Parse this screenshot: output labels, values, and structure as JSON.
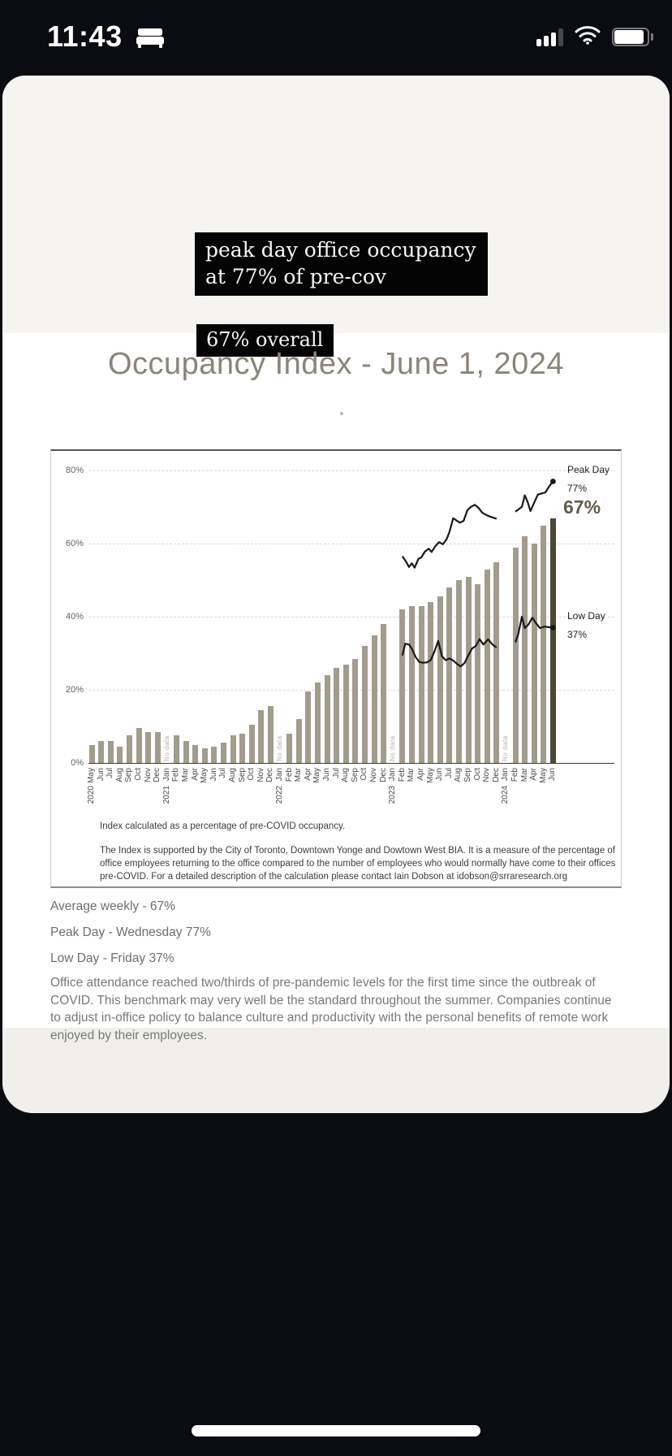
{
  "status_bar": {
    "time": "11:43",
    "icons": [
      "bed-icon",
      "cellular-signal-icon",
      "wifi-icon",
      "battery-icon"
    ]
  },
  "overlays": {
    "line1": "peak day office occupancy",
    "line2": "at 77% of pre-cov",
    "badge": "67% overall"
  },
  "title": "Occupancy Index - June 1, 2024",
  "chart_data": {
    "type": "bar",
    "title": "Occupancy Index - June 1, 2024",
    "ylabel": "",
    "xlabel": "",
    "ylim": [
      0,
      85
    ],
    "y_ticks": [
      80,
      60,
      40,
      20,
      0
    ],
    "grid": "dashed horizontal",
    "no_data_label": "No data",
    "bar_color": "#a39b8b",
    "bar_highlight_color": "#4e4637",
    "line_color": "#181818",
    "categories": [
      "May",
      "Jun",
      "Jul",
      "Aug",
      "Sep",
      "Oct",
      "Nov",
      "Dec",
      "Jan",
      "Feb",
      "Mar",
      "Apr",
      "May",
      "Jun",
      "Jul",
      "Aug",
      "Sep",
      "Oct",
      "Nov",
      "Dec",
      "Jan",
      "Feb",
      "Mar",
      "Apr",
      "May",
      "Jun",
      "Jul",
      "Aug",
      "Sep",
      "Oct",
      "Nov",
      "Dec",
      "Jan",
      "Feb",
      "Mar",
      "Apr",
      "May",
      "Jun",
      "Jul",
      "Aug",
      "Sep",
      "Oct",
      "Nov",
      "Dec",
      "Jan",
      "Feb",
      "Mar",
      "Apr",
      "May",
      "Jun"
    ],
    "years": [
      {
        "label": "2020",
        "index": 0
      },
      {
        "label": "2021",
        "index": 8
      },
      {
        "label": "2022",
        "index": 20
      },
      {
        "label": "2023",
        "index": 32
      },
      {
        "label": "2024",
        "index": 44
      }
    ],
    "values": [
      5,
      6,
      6,
      4.5,
      7.5,
      9.5,
      8.5,
      8.5,
      null,
      7.5,
      6,
      5,
      4,
      4.5,
      5.5,
      7.5,
      8,
      10.5,
      14.5,
      15.5,
      null,
      8,
      12,
      19.5,
      22,
      24,
      26,
      27,
      28.5,
      32,
      35,
      38,
      null,
      42,
      43,
      43,
      44,
      45.5,
      48,
      50,
      51,
      49,
      53,
      55,
      null,
      59,
      62,
      60,
      65,
      67
    ],
    "series": [
      {
        "name": "Peak Day",
        "end_value": "77%",
        "segments": [
          [
            [
              33,
              56.5
            ],
            [
              33.4,
              55
            ],
            [
              33.7,
              53.6
            ],
            [
              34,
              54.6
            ],
            [
              34.3,
              53.4
            ],
            [
              34.7,
              55.8
            ],
            [
              35,
              56.2
            ],
            [
              35.4,
              57.8
            ],
            [
              35.8,
              58.6
            ],
            [
              36.1,
              57.7
            ],
            [
              36.5,
              59.3
            ],
            [
              36.9,
              60.4
            ],
            [
              37.3,
              59.8
            ],
            [
              37.7,
              61.2
            ],
            [
              38,
              63.2
            ],
            [
              38.4,
              66.9
            ],
            [
              38.7,
              66.4
            ],
            [
              39.1,
              65.7
            ],
            [
              39.5,
              66.2
            ],
            [
              39.9,
              69.1
            ],
            [
              40.3,
              70.1
            ],
            [
              40.7,
              70.6
            ],
            [
              41.1,
              69.7
            ],
            [
              41.5,
              68.4
            ],
            [
              42,
              67.7
            ],
            [
              42.5,
              67.2
            ],
            [
              43,
              66.8
            ]
          ],
          [
            [
              45,
              68.7
            ],
            [
              45.3,
              69.3
            ],
            [
              45.7,
              70.1
            ],
            [
              46,
              73.2
            ],
            [
              46.3,
              71.4
            ],
            [
              46.6,
              68.9
            ],
            [
              47,
              71.2
            ],
            [
              47.4,
              73.4
            ],
            [
              47.8,
              73.7
            ],
            [
              48.2,
              74
            ],
            [
              48.6,
              75.7
            ],
            [
              49,
              77
            ]
          ]
        ]
      },
      {
        "name": "Low Day",
        "end_value": "37%",
        "segments": [
          [
            [
              33,
              29.4
            ],
            [
              33.3,
              32.6
            ],
            [
              33.7,
              32.4
            ],
            [
              34,
              31.3
            ],
            [
              34.4,
              29
            ],
            [
              34.8,
              27.6
            ],
            [
              35.2,
              27.4
            ],
            [
              35.6,
              27.5
            ],
            [
              36,
              28.1
            ],
            [
              36.4,
              30.4
            ],
            [
              36.8,
              33.4
            ],
            [
              37.2,
              29.2
            ],
            [
              37.6,
              28.1
            ],
            [
              38,
              28.6
            ],
            [
              38.4,
              28
            ],
            [
              38.8,
              27.1
            ],
            [
              39.2,
              26.4
            ],
            [
              39.6,
              27.3
            ],
            [
              40,
              29.4
            ],
            [
              40.4,
              31.3
            ],
            [
              40.8,
              32
            ],
            [
              41.2,
              33.9
            ],
            [
              41.6,
              32.4
            ],
            [
              42.1,
              33.8
            ],
            [
              42.6,
              32.3
            ],
            [
              43,
              31.6
            ]
          ],
          [
            [
              45,
              33
            ],
            [
              45.3,
              35.2
            ],
            [
              45.7,
              40
            ],
            [
              46,
              36.9
            ],
            [
              46.4,
              37.9
            ],
            [
              46.8,
              39.7
            ],
            [
              47.2,
              38.2
            ],
            [
              47.6,
              36.9
            ],
            [
              48.1,
              37.3
            ],
            [
              48.6,
              37.1
            ],
            [
              49,
              37
            ]
          ]
        ]
      }
    ],
    "annotations": {
      "peak_label": "Peak Day",
      "peak_value": "77%",
      "low_label": "Low Day",
      "low_value": "37%",
      "final_value": "67%"
    }
  },
  "footnotes": [
    "Index calculated as a percentage of pre-COVID occupancy.",
    "The Index is supported by the City of Toronto, Downtown Yonge and Dowtown West BIA. It is a measure of the percentage of office employees returning to the office compared to the number of employees who would normally have come to their offices pre-COVID. For a detailed description of the calculation please contact Iain Dobson at idobson@srraresearch.org"
  ],
  "summary": [
    "Average weekly - 67%",
    "Peak Day - Wednesday 77%",
    "Low Day - Friday 37%"
  ],
  "paragraph": "Office attendance reached two/thirds of pre-pandemic levels for the first time since the outbreak of COVID. This benchmark may very well be the standard throughout the summer. Companies continue to adjust in-office policy to balance culture and productivity with the personal benefits of remote work enjoyed by their employees."
}
